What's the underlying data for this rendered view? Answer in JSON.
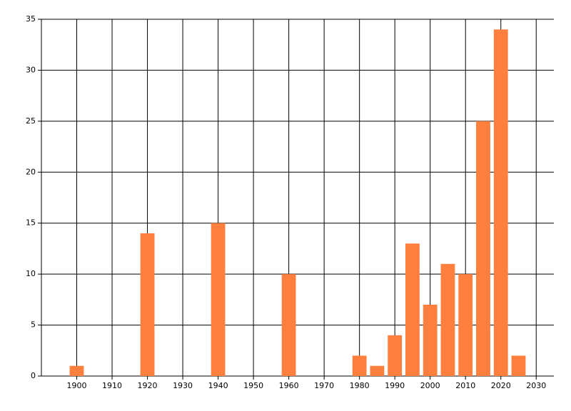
{
  "chart_data": {
    "type": "bar",
    "x": [
      1900,
      1920,
      1940,
      1960,
      1980,
      1985,
      1990,
      1995,
      2000,
      2005,
      2010,
      2015,
      2020,
      2025
    ],
    "values": [
      1,
      14,
      15,
      10,
      2,
      1,
      4,
      13,
      7,
      11,
      10,
      25,
      34,
      2
    ],
    "color": "#ff7f3f",
    "xlim": [
      1890,
      2035
    ],
    "xticks": [
      1900,
      1910,
      1920,
      1930,
      1940,
      1950,
      1960,
      1970,
      1980,
      1990,
      2000,
      2010,
      2020,
      2030
    ],
    "ylim": [
      0,
      35
    ],
    "yticks": [
      0,
      5,
      10,
      15,
      20,
      25,
      30,
      35
    ],
    "grid": true
  }
}
